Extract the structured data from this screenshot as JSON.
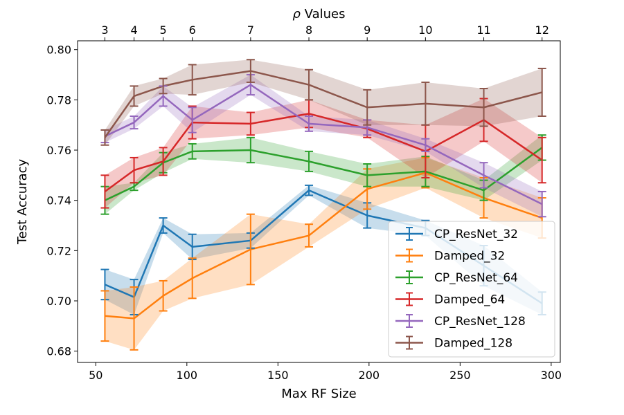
{
  "chart_data": {
    "type": "line",
    "xlabel": "Max RF Size",
    "ylabel": "Test Accuracy",
    "top_xlabel_prefix": "ρ",
    "top_xlabel_suffix": " Values",
    "xlim": [
      40,
      305
    ],
    "ylim": [
      0.6755,
      0.8035
    ],
    "x_ticks": [
      50,
      100,
      150,
      200,
      250,
      300
    ],
    "y_ticks": [
      0.68,
      0.7,
      0.72,
      0.74,
      0.76,
      0.78,
      0.8
    ],
    "y_tick_labels": [
      "0.68",
      "0.70",
      "0.72",
      "0.74",
      "0.76",
      "0.78",
      "0.80"
    ],
    "top_ticks": [
      {
        "label": "3",
        "x": 55
      },
      {
        "label": "4",
        "x": 71
      },
      {
        "label": "5",
        "x": 87
      },
      {
        "label": "6",
        "x": 103
      },
      {
        "label": "7",
        "x": 135
      },
      {
        "label": "8",
        "x": 167
      },
      {
        "label": "9",
        "x": 199
      },
      {
        "label": "10",
        "x": 231
      },
      {
        "label": "11",
        "x": 263
      },
      {
        "label": "12",
        "x": 295
      }
    ],
    "x": [
      55,
      71,
      87,
      103,
      135,
      167,
      199,
      231,
      263,
      295
    ],
    "legend_position": "lower-right",
    "grid": false,
    "series": [
      {
        "name": "CP_ResNet_32",
        "color": "#1f77b4",
        "values": [
          0.7065,
          0.7015,
          0.73,
          0.7215,
          0.724,
          0.744,
          0.734,
          0.729,
          0.714,
          0.699
        ],
        "errors": [
          0.006,
          0.007,
          0.003,
          0.005,
          0.003,
          0.002,
          0.005,
          0.003,
          0.008,
          0.0045
        ]
      },
      {
        "name": "Damped_32",
        "color": "#ff7f0e",
        "values": [
          0.694,
          0.693,
          0.702,
          0.709,
          0.7205,
          0.726,
          0.7445,
          0.751,
          0.741,
          0.733
        ],
        "errors": [
          0.01,
          0.0125,
          0.006,
          0.008,
          0.014,
          0.0045,
          0.008,
          0.006,
          0.008,
          0.008
        ]
      },
      {
        "name": "CP_ResNet_64",
        "color": "#2ca02c",
        "values": [
          0.74,
          0.7455,
          0.755,
          0.7595,
          0.76,
          0.7555,
          0.75,
          0.7515,
          0.744,
          0.761
        ],
        "errors": [
          0.0055,
          0.0015,
          0.004,
          0.003,
          0.005,
          0.004,
          0.0045,
          0.006,
          0.004,
          0.005
        ]
      },
      {
        "name": "Damped_64",
        "color": "#d62728",
        "values": [
          0.7435,
          0.752,
          0.7555,
          0.771,
          0.7705,
          0.7745,
          0.7685,
          0.7595,
          0.772,
          0.756
        ],
        "errors": [
          0.0065,
          0.005,
          0.0055,
          0.0065,
          0.0045,
          0.0055,
          0.0035,
          0.0105,
          0.0085,
          0.009
        ]
      },
      {
        "name": "CP_ResNet_128",
        "color": "#9467bd",
        "values": [
          0.7655,
          0.771,
          0.7815,
          0.772,
          0.786,
          0.7705,
          0.769,
          0.762,
          0.75,
          0.7385
        ],
        "errors": [
          0.0025,
          0.0025,
          0.004,
          0.005,
          0.004,
          0.003,
          0.003,
          0.0025,
          0.005,
          0.005
        ]
      },
      {
        "name": "Damped_128",
        "color": "#8c564b",
        "values": [
          0.765,
          0.7815,
          0.7855,
          0.788,
          0.7915,
          0.786,
          0.777,
          0.7785,
          0.777,
          0.783
        ],
        "errors": [
          0.003,
          0.004,
          0.003,
          0.006,
          0.0045,
          0.006,
          0.007,
          0.0085,
          0.0075,
          0.0095
        ]
      }
    ]
  }
}
